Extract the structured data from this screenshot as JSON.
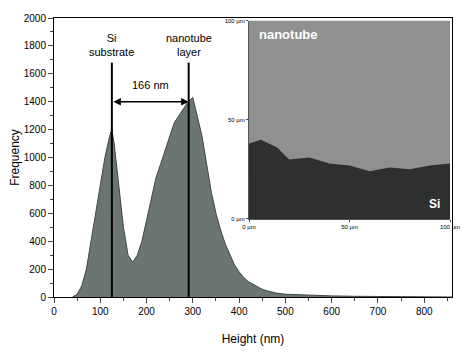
{
  "chart_data": {
    "type": "area",
    "x_label": "Height (nm)",
    "y_label": "Frequency",
    "color": "#6b7573",
    "x": [
      40,
      50,
      60,
      70,
      80,
      90,
      100,
      110,
      120,
      125,
      130,
      140,
      150,
      160,
      170,
      180,
      190,
      200,
      210,
      220,
      230,
      240,
      250,
      260,
      270,
      280,
      290,
      300,
      310,
      320,
      330,
      340,
      350,
      360,
      370,
      380,
      390,
      400,
      410,
      420,
      430,
      440,
      450,
      460,
      470,
      480,
      500,
      550,
      600,
      650,
      700,
      750,
      800,
      860
    ],
    "values": [
      0,
      20,
      80,
      200,
      400,
      600,
      800,
      1000,
      1150,
      1200,
      1100,
      800,
      500,
      300,
      250,
      300,
      400,
      550,
      700,
      850,
      950,
      1050,
      1150,
      1250,
      1300,
      1350,
      1400,
      1430,
      1300,
      1150,
      950,
      750,
      600,
      480,
      380,
      300,
      230,
      180,
      140,
      110,
      90,
      70,
      55,
      45,
      35,
      28,
      20,
      12,
      8,
      5,
      3,
      2,
      1,
      0
    ],
    "xlim": [
      0,
      860
    ],
    "xticks": [
      0,
      100,
      200,
      300,
      400,
      500,
      600,
      700,
      800
    ],
    "ylim": [
      0,
      2000
    ],
    "yticks": [
      0,
      200,
      400,
      600,
      800,
      1000,
      1200,
      1400,
      1600,
      1800,
      2000
    ],
    "grid": false,
    "reference_lines": [
      {
        "x": 125,
        "label": [
          "Si",
          "substrate"
        ]
      },
      {
        "x": 291,
        "label": [
          "nanotube",
          "layer"
        ]
      }
    ],
    "span": {
      "from": 125,
      "to": 291,
      "label": "166 nm"
    },
    "inset": {
      "labels": {
        "upper": "nanotube",
        "lower": "Si"
      },
      "xlim": [
        0,
        100
      ],
      "ylim": [
        0,
        100
      ],
      "xticks": [
        {
          "value": 0,
          "label": "0 µm"
        },
        {
          "value": 50,
          "label": "50 µm"
        },
        {
          "value": 100,
          "label": "100 µm"
        }
      ],
      "yticks": [
        {
          "value": 0,
          "label": "0 µm"
        },
        {
          "value": 50,
          "label": "50 µm"
        },
        {
          "value": 100,
          "label": "100 µm"
        }
      ]
    }
  }
}
